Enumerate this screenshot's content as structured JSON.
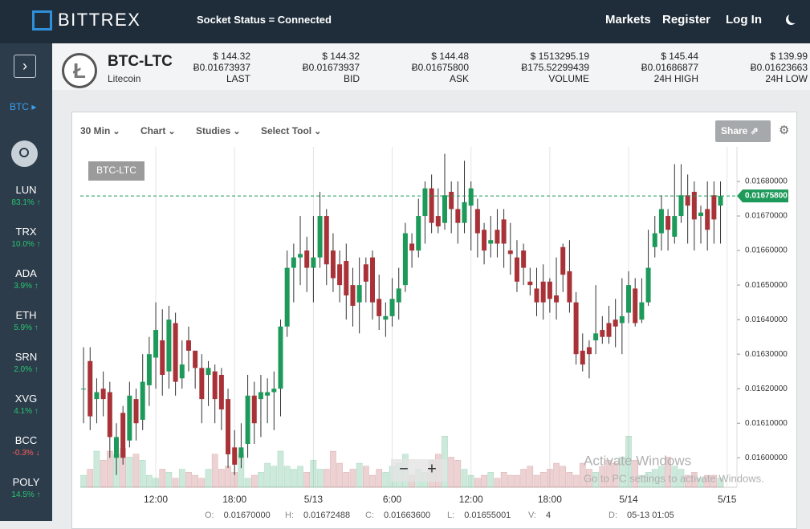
{
  "header": {
    "logo": "BITTREX",
    "socket_status": "Socket Status = Connected",
    "nav": [
      "Markets",
      "Register",
      "Log In"
    ]
  },
  "sidebar": {
    "market": "BTC",
    "coins": [
      {
        "name": "LUN",
        "change": "83.1%",
        "trend": "up"
      },
      {
        "name": "TRX",
        "change": "10.0%",
        "trend": "up"
      },
      {
        "name": "ADA",
        "change": "3.9%",
        "trend": "up"
      },
      {
        "name": "ETH",
        "change": "5.9%",
        "trend": "up"
      },
      {
        "name": "SRN",
        "change": "2.0%",
        "trend": "up"
      },
      {
        "name": "XVG",
        "change": "4.1%",
        "trend": "up"
      },
      {
        "name": "BCC",
        "change": "-0.3%",
        "trend": "down"
      },
      {
        "name": "POLY",
        "change": "14.5%",
        "trend": "up"
      }
    ]
  },
  "ticker": {
    "pair": "BTC-LTC",
    "name": "Litecoin",
    "stats": [
      {
        "usd": "$ 144.32",
        "btc": "Ƀ0.01673937",
        "label": "LAST"
      },
      {
        "usd": "$ 144.32",
        "btc": "Ƀ0.01673937",
        "label": "BID"
      },
      {
        "usd": "$ 144.48",
        "btc": "Ƀ0.01675800",
        "label": "ASK"
      },
      {
        "usd": "$ 1513295.19",
        "btc": "Ƀ175.52299439",
        "label": "VOLUME"
      },
      {
        "usd": "$ 145.44",
        "btc": "Ƀ0.01686877",
        "label": "24H HIGH"
      },
      {
        "usd": "$ 139.99",
        "btc": "Ƀ0.01623663",
        "label": "24H LOW"
      }
    ]
  },
  "toolbar": {
    "interval": "30 Min",
    "menus": [
      "Chart",
      "Studies",
      "Select Tool"
    ],
    "share": "Share"
  },
  "chart_data": {
    "type": "candlestick",
    "symbol_label": "BTC-LTC",
    "open": [
      0.0162,
      0.01628,
      0.01617,
      0.0162,
      0.01619,
      0.016,
      0.01613,
      0.01605,
      0.01617,
      0.01611,
      0.01621,
      0.01629,
      0.01634,
      0.01625,
      0.01639,
      0.01623,
      0.01634,
      0.01631,
      0.01626,
      0.01624,
      0.01625,
      0.01624,
      0.01617,
      0.01603,
      0.016,
      0.01604,
      0.01618,
      0.01617,
      0.01618,
      0.01619,
      0.0162,
      0.01638,
      0.01655,
      0.01658,
      0.0166,
      0.01655,
      0.01658,
      0.0167,
      0.0166,
      0.01656,
      0.01657,
      0.0165,
      0.01645,
      0.01656,
      0.01658,
      0.01646,
      0.0164,
      0.01641,
      0.01645,
      0.0165,
      0.01662,
      0.0166,
      0.0167,
      0.01678,
      0.0167,
      0.01668,
      0.01677,
      0.01672,
      0.01668,
      0.01673,
      0.01672,
      0.01666,
      0.01662,
      0.01666,
      0.01669,
      0.0166,
      0.01658,
      0.0166,
      0.01651,
      0.01649,
      0.01651,
      0.01651,
      0.01647,
      0.01661,
      0.01654,
      0.01645,
      0.01631,
      0.01632,
      0.01634,
      0.01637,
      0.01639,
      0.0164,
      0.01639,
      0.01642,
      0.01649,
      0.0164,
      0.01645,
      0.01661,
      0.01665,
      0.0167,
      0.01664,
      0.0167,
      0.01676,
      0.01677,
      0.0167,
      0.01672,
      0.01676,
      0.01673
    ],
    "high": [
      0.01632,
      0.01632,
      0.01623,
      0.01625,
      0.01622,
      0.0161,
      0.01615,
      0.01622,
      0.0162,
      0.0163,
      0.01635,
      0.01645,
      0.01643,
      0.01644,
      0.01642,
      0.01634,
      0.01638,
      0.01631,
      0.0163,
      0.01628,
      0.01627,
      0.01626,
      0.0162,
      0.01608,
      0.0161,
      0.01624,
      0.01622,
      0.01624,
      0.01623,
      0.01625,
      0.0164,
      0.0166,
      0.01662,
      0.0167,
      0.01664,
      0.0167,
      0.01677,
      0.01672,
      0.01665,
      0.0166,
      0.01662,
      0.01655,
      0.01658,
      0.01658,
      0.0166,
      0.01653,
      0.01645,
      0.01652,
      0.01655,
      0.01668,
      0.01665,
      0.01675,
      0.0168,
      0.01682,
      0.01678,
      0.01688,
      0.0168,
      0.0168,
      0.01686,
      0.0168,
      0.01675,
      0.01668,
      0.0167,
      0.01672,
      0.01672,
      0.01668,
      0.01663,
      0.01662,
      0.01655,
      0.01655,
      0.01656,
      0.01652,
      0.01658,
      0.01662,
      0.01663,
      0.01648,
      0.01636,
      0.01634,
      0.0165,
      0.01641,
      0.01644,
      0.01646,
      0.01652,
      0.01654,
      0.01652,
      0.01652,
      0.01666,
      0.0167,
      0.01676,
      0.01672,
      0.01685,
      0.01685,
      0.01682,
      0.0168,
      0.01673,
      0.0168,
      0.0168,
      0.0168
    ],
    "low": [
      0.0161,
      0.01608,
      0.0161,
      0.01612,
      0.016,
      0.01595,
      0.01598,
      0.01603,
      0.01605,
      0.01608,
      0.01615,
      0.0162,
      0.01618,
      0.0162,
      0.01618,
      0.0162,
      0.01625,
      0.0162,
      0.0161,
      0.01615,
      0.0161,
      0.01608,
      0.01597,
      0.01595,
      0.01597,
      0.016,
      0.01604,
      0.01606,
      0.0161,
      0.01608,
      0.01612,
      0.01635,
      0.01645,
      0.0165,
      0.01648,
      0.01645,
      0.01655,
      0.0165,
      0.01648,
      0.01645,
      0.0164,
      0.01638,
      0.01636,
      0.01645,
      0.0164,
      0.01637,
      0.01635,
      0.01638,
      0.0164,
      0.01648,
      0.01655,
      0.01658,
      0.01662,
      0.01665,
      0.01665,
      0.01666,
      0.01665,
      0.01662,
      0.01665,
      0.0166,
      0.01658,
      0.01656,
      0.01658,
      0.01658,
      0.01655,
      0.01653,
      0.01648,
      0.0165,
      0.01647,
      0.01641,
      0.0164,
      0.01642,
      0.0164,
      0.01648,
      0.01642,
      0.01627,
      0.01625,
      0.01623,
      0.0163,
      0.01633,
      0.01633,
      0.01632,
      0.0163,
      0.01639,
      0.01638,
      0.01639,
      0.01644,
      0.01658,
      0.0166,
      0.0166,
      0.01662,
      0.01668,
      0.01662,
      0.0166,
      0.01662,
      0.0166,
      0.01662,
      0.01662
    ],
    "close": [
      0.0162,
      0.01612,
      0.01619,
      0.01617,
      0.01606,
      0.01606,
      0.016,
      0.01618,
      0.0161,
      0.01622,
      0.0163,
      0.01637,
      0.01624,
      0.0164,
      0.01622,
      0.01627,
      0.01631,
      0.01626,
      0.01617,
      0.01626,
      0.01617,
      0.01614,
      0.01601,
      0.01598,
      0.01603,
      0.01618,
      0.0161,
      0.01619,
      0.01619,
      0.0162,
      0.01638,
      0.01655,
      0.01658,
      0.01659,
      0.01655,
      0.01658,
      0.0167,
      0.01656,
      0.01652,
      0.0165,
      0.01647,
      0.01644,
      0.0165,
      0.01651,
      0.01645,
      0.01641,
      0.01641,
      0.01646,
      0.01649,
      0.01665,
      0.0166,
      0.0167,
      0.01678,
      0.01668,
      0.01667,
      0.01676,
      0.01672,
      0.01668,
      0.01674,
      0.01678,
      0.01665,
      0.0166,
      0.01663,
      0.01662,
      0.01662,
      0.01659,
      0.01651,
      0.01655,
      0.0165,
      0.01645,
      0.01645,
      0.01646,
      0.01645,
      0.01653,
      0.01645,
      0.0163,
      0.01627,
      0.0163,
      0.01636,
      0.01635,
      0.01635,
      0.01638,
      0.01641,
      0.0165,
      0.01639,
      0.01645,
      0.01655,
      0.01665,
      0.01672,
      0.01666,
      0.0167,
      0.01676,
      0.01673,
      0.01669,
      0.01671,
      0.01666,
      0.01669,
      0.016758
    ],
    "volume": [
      20,
      30,
      60,
      45,
      60,
      55,
      65,
      50,
      55,
      45,
      20,
      15,
      30,
      25,
      15,
      30,
      25,
      20,
      15,
      30,
      55,
      30,
      35,
      25,
      55,
      15,
      20,
      25,
      40,
      35,
      60,
      35,
      30,
      35,
      25,
      45,
      30,
      30,
      60,
      40,
      25,
      30,
      40,
      35,
      20,
      30,
      25,
      35,
      40,
      55,
      20,
      30,
      25,
      45,
      55,
      85,
      50,
      45,
      30,
      20,
      15,
      20,
      25,
      15,
      25,
      20,
      20,
      30,
      35,
      20,
      25,
      30,
      40,
      35,
      25,
      20,
      40,
      30,
      25,
      35,
      45,
      40,
      50,
      85,
      45,
      20,
      25,
      30,
      35,
      50,
      35,
      30,
      20,
      25,
      15,
      20,
      20,
      15
    ],
    "last_label": "0.01675800",
    "up_color": "#1d9a5a",
    "down_color": "#a83237",
    "xlim": [
      -0.5,
      99.5
    ],
    "xticks": [
      {
        "value": 11,
        "label": "12:00"
      },
      {
        "value": 23,
        "label": "18:00"
      },
      {
        "value": 35,
        "label": "5/13"
      },
      {
        "value": 47,
        "label": "6:00"
      },
      {
        "value": 59,
        "label": "12:00"
      },
      {
        "value": 71,
        "label": "18:00"
      },
      {
        "value": 83,
        "label": "5/14"
      },
      {
        "value": 98,
        "label": "5/15"
      }
    ],
    "ylim": [
      0.01591,
      0.0169
    ],
    "yticks": [
      {
        "value": 0.016,
        "label": "0.01600000"
      },
      {
        "value": 0.0161,
        "label": "0.01610000"
      },
      {
        "value": 0.0162,
        "label": "0.01620000"
      },
      {
        "value": 0.0163,
        "label": "0.01630000"
      },
      {
        "value": 0.0164,
        "label": "0.01640000"
      },
      {
        "value": 0.0165,
        "label": "0.01650000"
      },
      {
        "value": 0.0166,
        "label": "0.01660000"
      },
      {
        "value": 0.0167,
        "label": "0.01670000"
      },
      {
        "value": 0.0168,
        "label": "0.01680000"
      }
    ],
    "vlim": [
      0,
      100
    ]
  },
  "status_bar": [
    {
      "key": "O:",
      "value": "0.01670000"
    },
    {
      "key": "H:",
      "value": "0.01672488"
    },
    {
      "key": "C:",
      "value": "0.01663600"
    },
    {
      "key": "L:",
      "value": "0.01655001"
    },
    {
      "key": "V:",
      "value": "4"
    },
    {
      "key": "D:",
      "value": "05-13 01:05"
    }
  ],
  "watermark": {
    "title": "Activate Windows",
    "text": "Go to PC settings to activate Windows."
  }
}
